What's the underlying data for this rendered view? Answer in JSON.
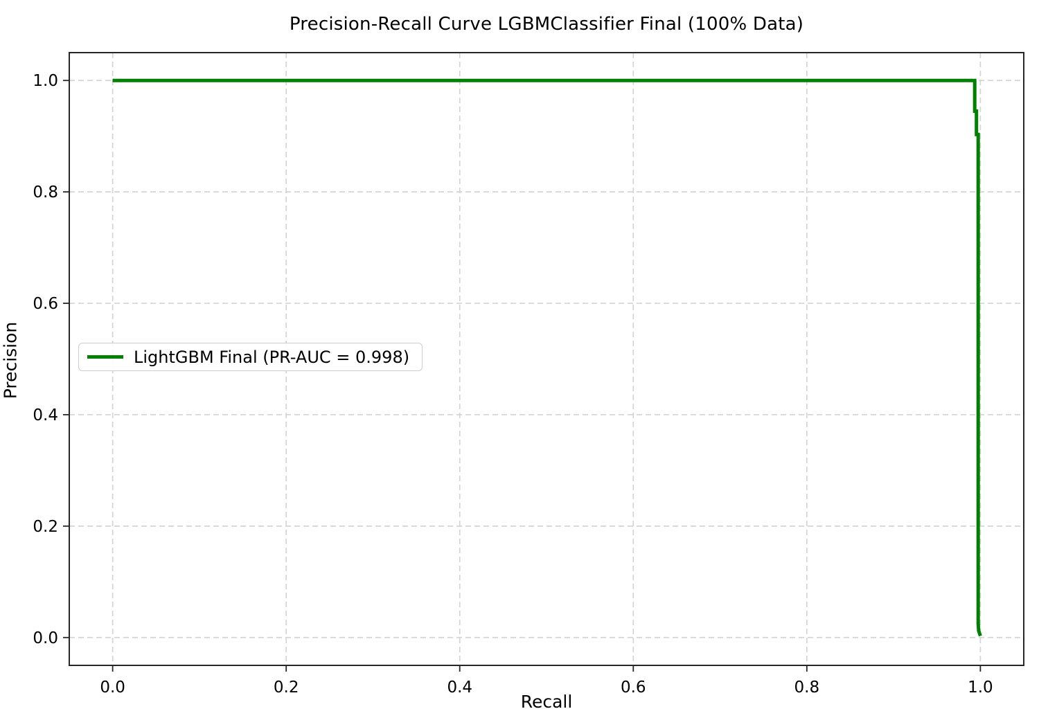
{
  "colors": {
    "curve_green": "#008000",
    "grid": "#d4d4d4",
    "spine": "#262626",
    "background": "#ffffff",
    "legend_border": "#cccccc"
  },
  "chart_data": {
    "type": "line",
    "title": "Precision-Recall Curve LGBMClassifier Final (100% Data)",
    "xlabel": "Recall",
    "ylabel": "Precision",
    "xlim": [
      -0.05,
      1.05
    ],
    "ylim": [
      -0.05,
      1.05
    ],
    "x_ticks": [
      0.0,
      0.2,
      0.4,
      0.6,
      0.8,
      1.0
    ],
    "y_ticks": [
      0.0,
      0.2,
      0.4,
      0.6,
      0.8,
      1.0
    ],
    "x_tick_labels": [
      "0.0",
      "0.2",
      "0.4",
      "0.6",
      "0.8",
      "1.0"
    ],
    "y_tick_labels": [
      "0.0",
      "0.2",
      "0.4",
      "0.6",
      "0.8",
      "1.0"
    ],
    "grid": true,
    "grid_style": "dashed",
    "legend_position": "center-left",
    "series": [
      {
        "name": "LightGBM Final (PR-AUC = 0.998)",
        "color": "#008000",
        "pr_auc": 0.998,
        "line_width": 5,
        "points": [
          [
            0.0,
            1.0
          ],
          [
            0.9935,
            1.0
          ],
          [
            0.9935,
            0.945
          ],
          [
            0.9955,
            0.945
          ],
          [
            0.9955,
            0.903
          ],
          [
            0.9975,
            0.903
          ],
          [
            0.9975,
            0.025
          ],
          [
            0.998,
            0.012
          ],
          [
            1.0,
            0.003
          ]
        ]
      }
    ]
  }
}
